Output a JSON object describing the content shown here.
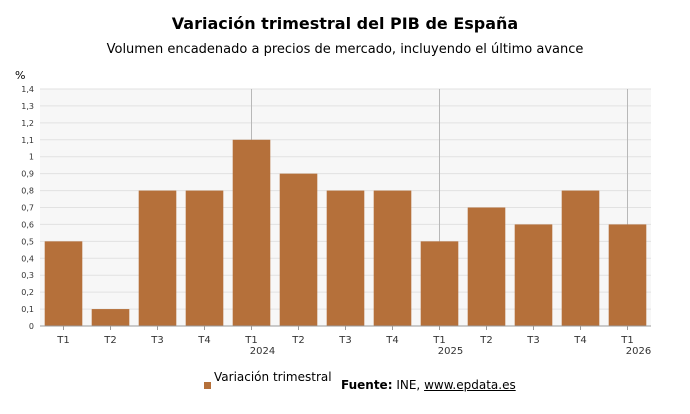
{
  "title": "Variación trimestral del PIB de España",
  "subtitle": "Volumen encadenado a precios de mercado, incluyendo el último avance",
  "legend": {
    "label": "Variación trimestral"
  },
  "source": {
    "label": "Fuente:",
    "text": "INE, ",
    "link": "www.epdata.es"
  },
  "chart_data": {
    "type": "bar",
    "y_unit": "%",
    "ylim": [
      0,
      1.4
    ],
    "yticks": [
      "0",
      "0,1",
      "0,2",
      "0,3",
      "0,4",
      "0,5",
      "0,6",
      "0,7",
      "0,8",
      "0,9",
      "1",
      "1,1",
      "1,2",
      "1,3",
      "1,4"
    ],
    "grid": true,
    "categories": [
      "T1",
      "T2",
      "T3",
      "T4",
      "T1",
      "T2",
      "T3",
      "T4",
      "T1",
      "T2",
      "T3",
      "T4",
      "T1"
    ],
    "year_labels": [
      {
        "index": 4,
        "year": "2024"
      },
      {
        "index": 8,
        "year": "2025"
      },
      {
        "index": 12,
        "year": "2026"
      }
    ],
    "series": [
      {
        "name": "Variación trimestral",
        "color": "#b5703a",
        "values": [
          0.5,
          0.1,
          0.8,
          0.8,
          1.1,
          0.9,
          0.8,
          0.8,
          0.5,
          0.7,
          0.6,
          0.8,
          0.6
        ]
      }
    ]
  }
}
